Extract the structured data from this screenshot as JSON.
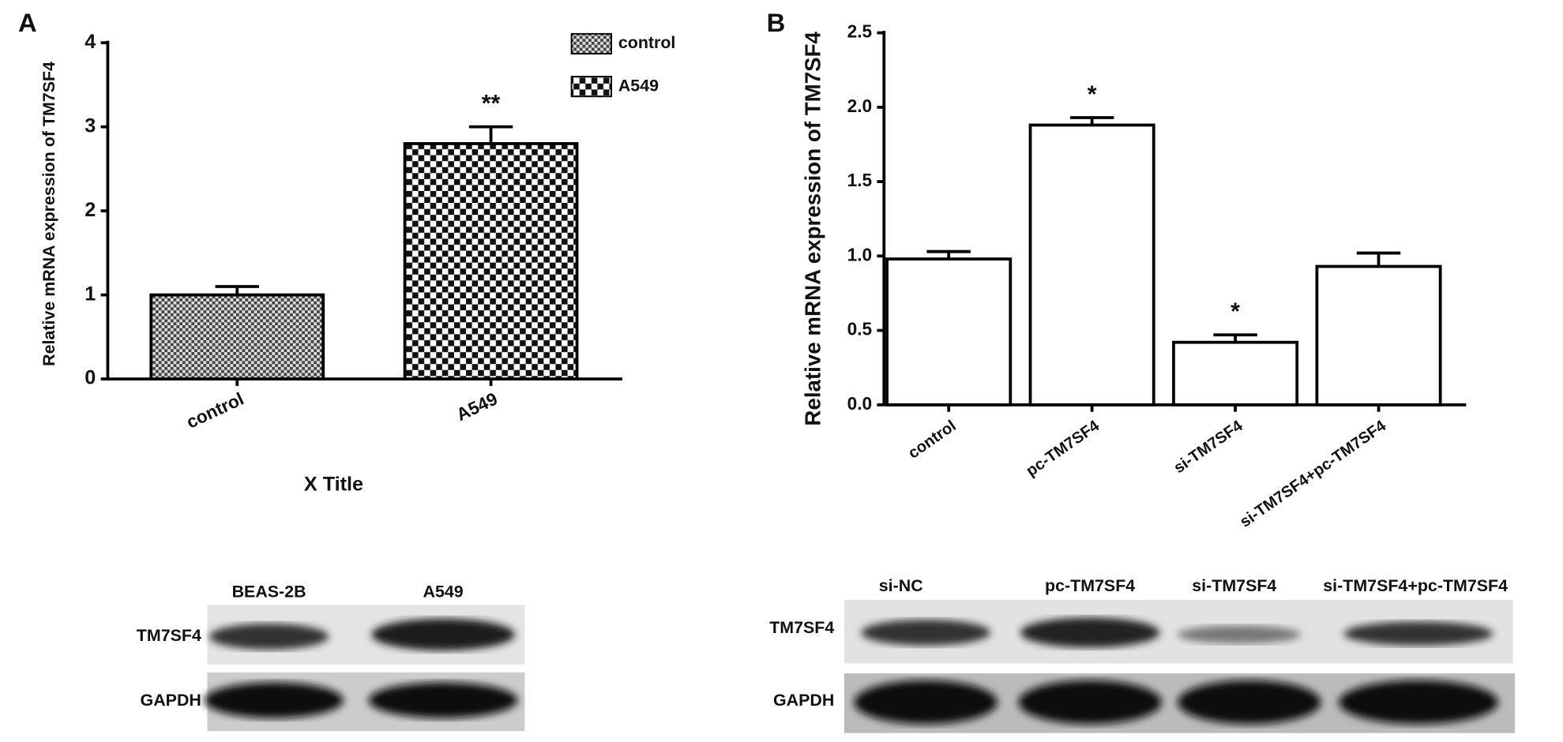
{
  "chart_data": [
    {
      "type": "bar",
      "panel": "A",
      "ylabel": "Relative mRNA expression of TM7SF4",
      "xlabel": "X Title",
      "categories": [
        "control",
        "A549"
      ],
      "values": [
        1.0,
        2.8
      ],
      "errors": [
        0.1,
        0.2
      ],
      "annotations": [
        null,
        "**"
      ],
      "ylim": [
        0,
        4
      ],
      "yticks": [
        0,
        1,
        2,
        3,
        4
      ],
      "legend": "upper right"
    },
    {
      "type": "bar",
      "panel": "B",
      "ylabel": "Relative mRNA expression of TM7SF4",
      "categories": [
        "control",
        "pc-TM7SF4",
        "si-TM7SF4",
        "si-TM7SF4+pc-TM7SF4"
      ],
      "values": [
        0.98,
        1.88,
        0.42,
        0.93
      ],
      "errors": [
        0.05,
        0.05,
        0.05,
        0.09
      ],
      "annotations": [
        null,
        "*",
        "*",
        null
      ],
      "ylim": [
        0,
        2.5
      ],
      "yticks": [
        {
          "value": 0,
          "label": "0.0"
        },
        0.5,
        {
          "value": 1,
          "label": "1.0"
        },
        1.5,
        {
          "value": 2,
          "label": "2.0"
        },
        2.5
      ]
    }
  ],
  "blots": [
    {
      "lanes": [
        "BEAS-2B",
        "A549"
      ],
      "rows": [
        "TM7SF4",
        "GAPDH"
      ]
    },
    {
      "lanes": [
        "si-NC",
        "pc-TM7SF4",
        "si-TM7SF4",
        "si-TM7SF4+pc-TM7SF4"
      ],
      "rows": [
        "TM7SF4",
        "GAPDH"
      ]
    }
  ]
}
